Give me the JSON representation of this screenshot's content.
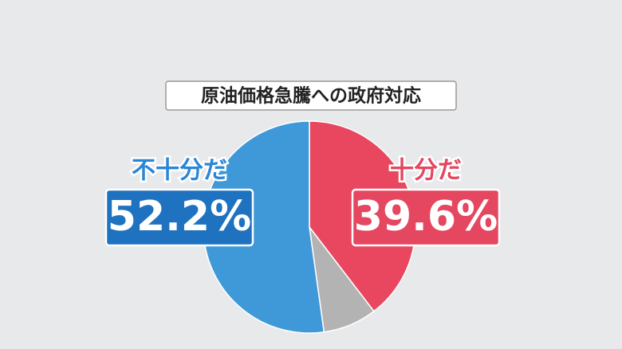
{
  "chart_data": {
    "type": "pie",
    "title": "原油価格急騰への政府対応",
    "categories": [
      "十分だ",
      null,
      "不十分だ"
    ],
    "values": [
      39.6,
      8.2,
      52.2
    ],
    "value_labels": [
      "39.6%",
      null,
      "52.2%"
    ],
    "colors": [
      "#e8475f",
      "#b3b3b3",
      "#3f99d8"
    ]
  }
}
